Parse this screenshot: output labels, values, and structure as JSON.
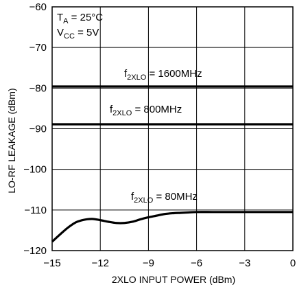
{
  "chart_data": {
    "type": "line",
    "xlabel": "2XLO INPUT POWER (dBm)",
    "ylabel": "LO-RF LEAKAGE (dBm)",
    "xlim": [
      -15,
      0
    ],
    "ylim": [
      -120,
      -60
    ],
    "xticks": [
      -15,
      -12,
      -9,
      -6,
      -3,
      0
    ],
    "yticks": [
      -60,
      -70,
      -80,
      -90,
      -100,
      -110,
      -120
    ],
    "xtick_labels": [
      "−15",
      "−12",
      "−9",
      "−6",
      "−3",
      "0"
    ],
    "ytick_labels": [
      "−60",
      "−70",
      "−80",
      "−90",
      "−100",
      "−110",
      "−120"
    ],
    "grid": true,
    "conditions": {
      "ta": {
        "main": "T",
        "sub": "A",
        "rest": " = 25°C"
      },
      "vcc": {
        "main": "V",
        "sub": "CC",
        "rest": " = 5V"
      }
    },
    "series": [
      {
        "name": "f2XLO = 1600MHz",
        "label": {
          "main": "f",
          "sub": "2XLO",
          "rest": " = 1600MHz"
        },
        "x": [
          -15,
          -12,
          -9,
          -6,
          -3,
          0
        ],
        "y": [
          -79.6,
          -79.6,
          -79.6,
          -79.6,
          -79.6,
          -79.6
        ]
      },
      {
        "name": "f2XLO = 800MHz",
        "label": {
          "main": "f",
          "sub": "2XLO",
          "rest": " = 800MHz"
        },
        "x": [
          -15,
          -12,
          -9,
          -6,
          -3,
          0
        ],
        "y": [
          -88.9,
          -88.9,
          -88.9,
          -88.9,
          -88.9,
          -88.9
        ]
      },
      {
        "name": "f2XLO = 80MHz",
        "label": {
          "main": "f",
          "sub": "2XLO",
          "rest": " = 80MHz"
        },
        "x": [
          -15,
          -14.5,
          -14,
          -13.5,
          -13,
          -12.5,
          -12,
          -11.5,
          -11,
          -10.5,
          -10,
          -9.5,
          -9,
          -8.5,
          -8,
          -7.5,
          -7,
          -6.5,
          -6,
          -5,
          -4,
          -3,
          -2,
          -1,
          0
        ],
        "y": [
          -117.8,
          -116.0,
          -114.3,
          -113.0,
          -112.4,
          -112.2,
          -112.5,
          -112.9,
          -113.2,
          -113.2,
          -112.9,
          -112.3,
          -111.8,
          -111.4,
          -111.0,
          -110.8,
          -110.7,
          -110.6,
          -110.5,
          -110.5,
          -110.5,
          -110.5,
          -110.5,
          -110.5,
          -110.5
        ]
      }
    ]
  }
}
